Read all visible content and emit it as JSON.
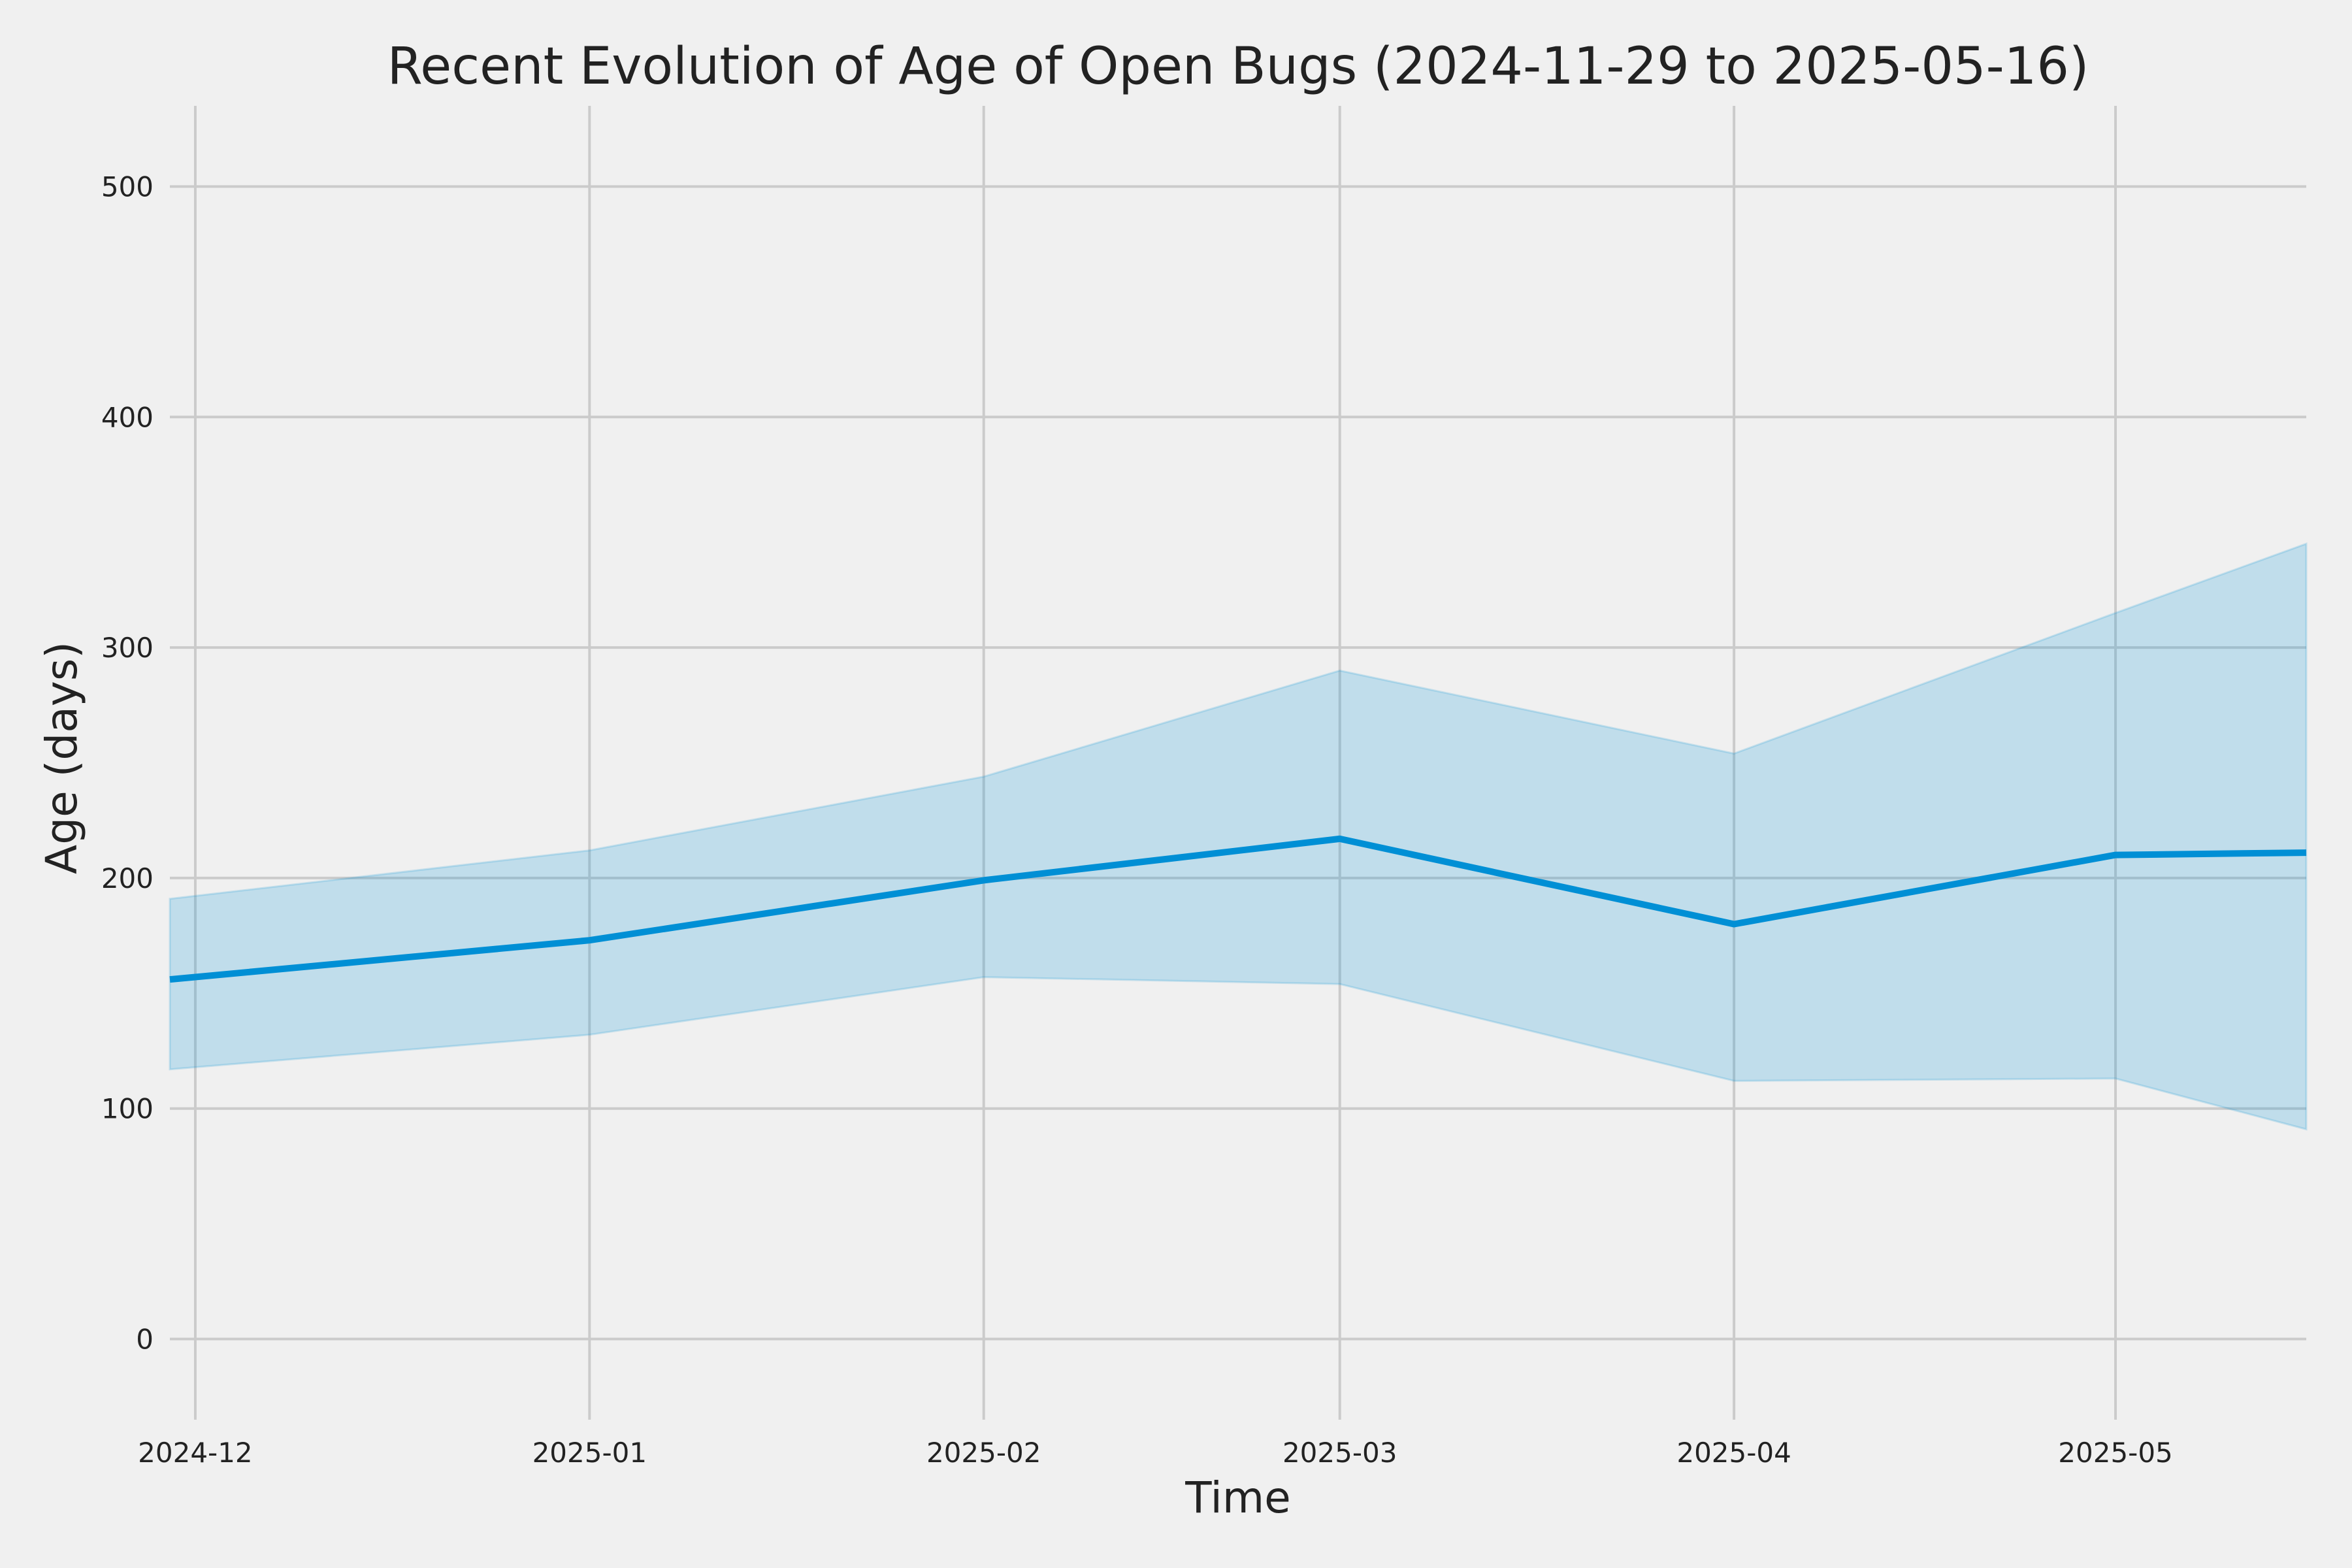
{
  "chart_data": {
    "type": "line",
    "title": "Recent Evolution of Age of Open Bugs (2024-11-29 to 2025-05-16)",
    "xlabel": "Time",
    "ylabel": "Age (days)",
    "xlim": [
      "2024-11-29",
      "2025-05-16"
    ],
    "ylim": [
      -35,
      535
    ],
    "grid": true,
    "x_ticks": [
      "2024-12",
      "2025-01",
      "2025-02",
      "2025-03",
      "2025-04",
      "2025-05"
    ],
    "x_tick_dates": [
      "2024-12-01",
      "2025-01-01",
      "2025-02-01",
      "2025-03-01",
      "2025-04-01",
      "2025-05-01"
    ],
    "y_ticks": [
      0,
      100,
      200,
      300,
      400,
      500
    ],
    "x": [
      "2024-11-29",
      "2025-01-01",
      "2025-02-01",
      "2025-03-01",
      "2025-04-01",
      "2025-05-01",
      "2025-05-16"
    ],
    "series": [
      {
        "values": [
          156,
          173,
          199,
          217,
          180,
          210,
          211
        ]
      }
    ],
    "band": {
      "lower": [
        117,
        132,
        157,
        154,
        112,
        113,
        91
      ],
      "upper": [
        191,
        212,
        244,
        290,
        254,
        315,
        345
      ]
    },
    "colors": {
      "line": "#008fd5",
      "band": "#008fd5",
      "background": "#f0f0f0",
      "grid": "#cbcbcb"
    }
  }
}
